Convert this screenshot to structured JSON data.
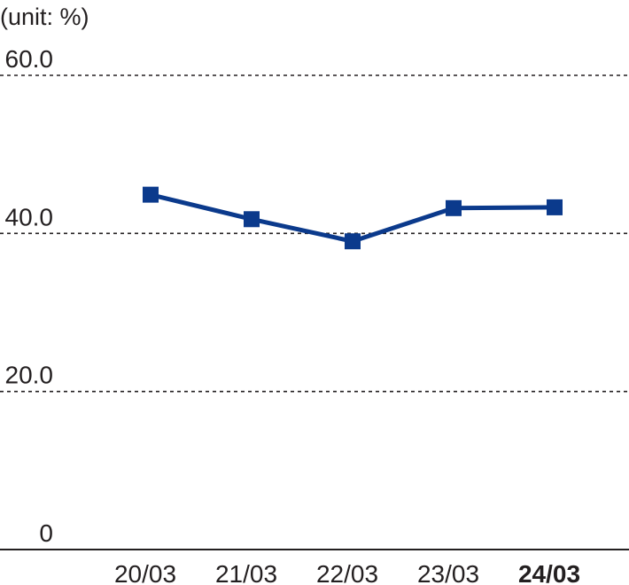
{
  "chart_data": {
    "type": "line",
    "unit_label": "(unit: %)",
    "categories": [
      "20/03",
      "21/03",
      "22/03",
      "23/03",
      "24/03"
    ],
    "highlighted_category": "24/03",
    "series": [
      {
        "values": [
          44.9,
          41.8,
          39.0,
          43.2,
          43.3
        ],
        "color": "#0b3a8c",
        "marker": "square"
      }
    ],
    "ylim": [
      0,
      60
    ],
    "yticks": [
      0,
      20,
      40,
      60
    ],
    "ytick_labels": [
      "0",
      "20.0",
      "40.0",
      "60.0"
    ],
    "grid": true,
    "grid_style": "dashed"
  }
}
